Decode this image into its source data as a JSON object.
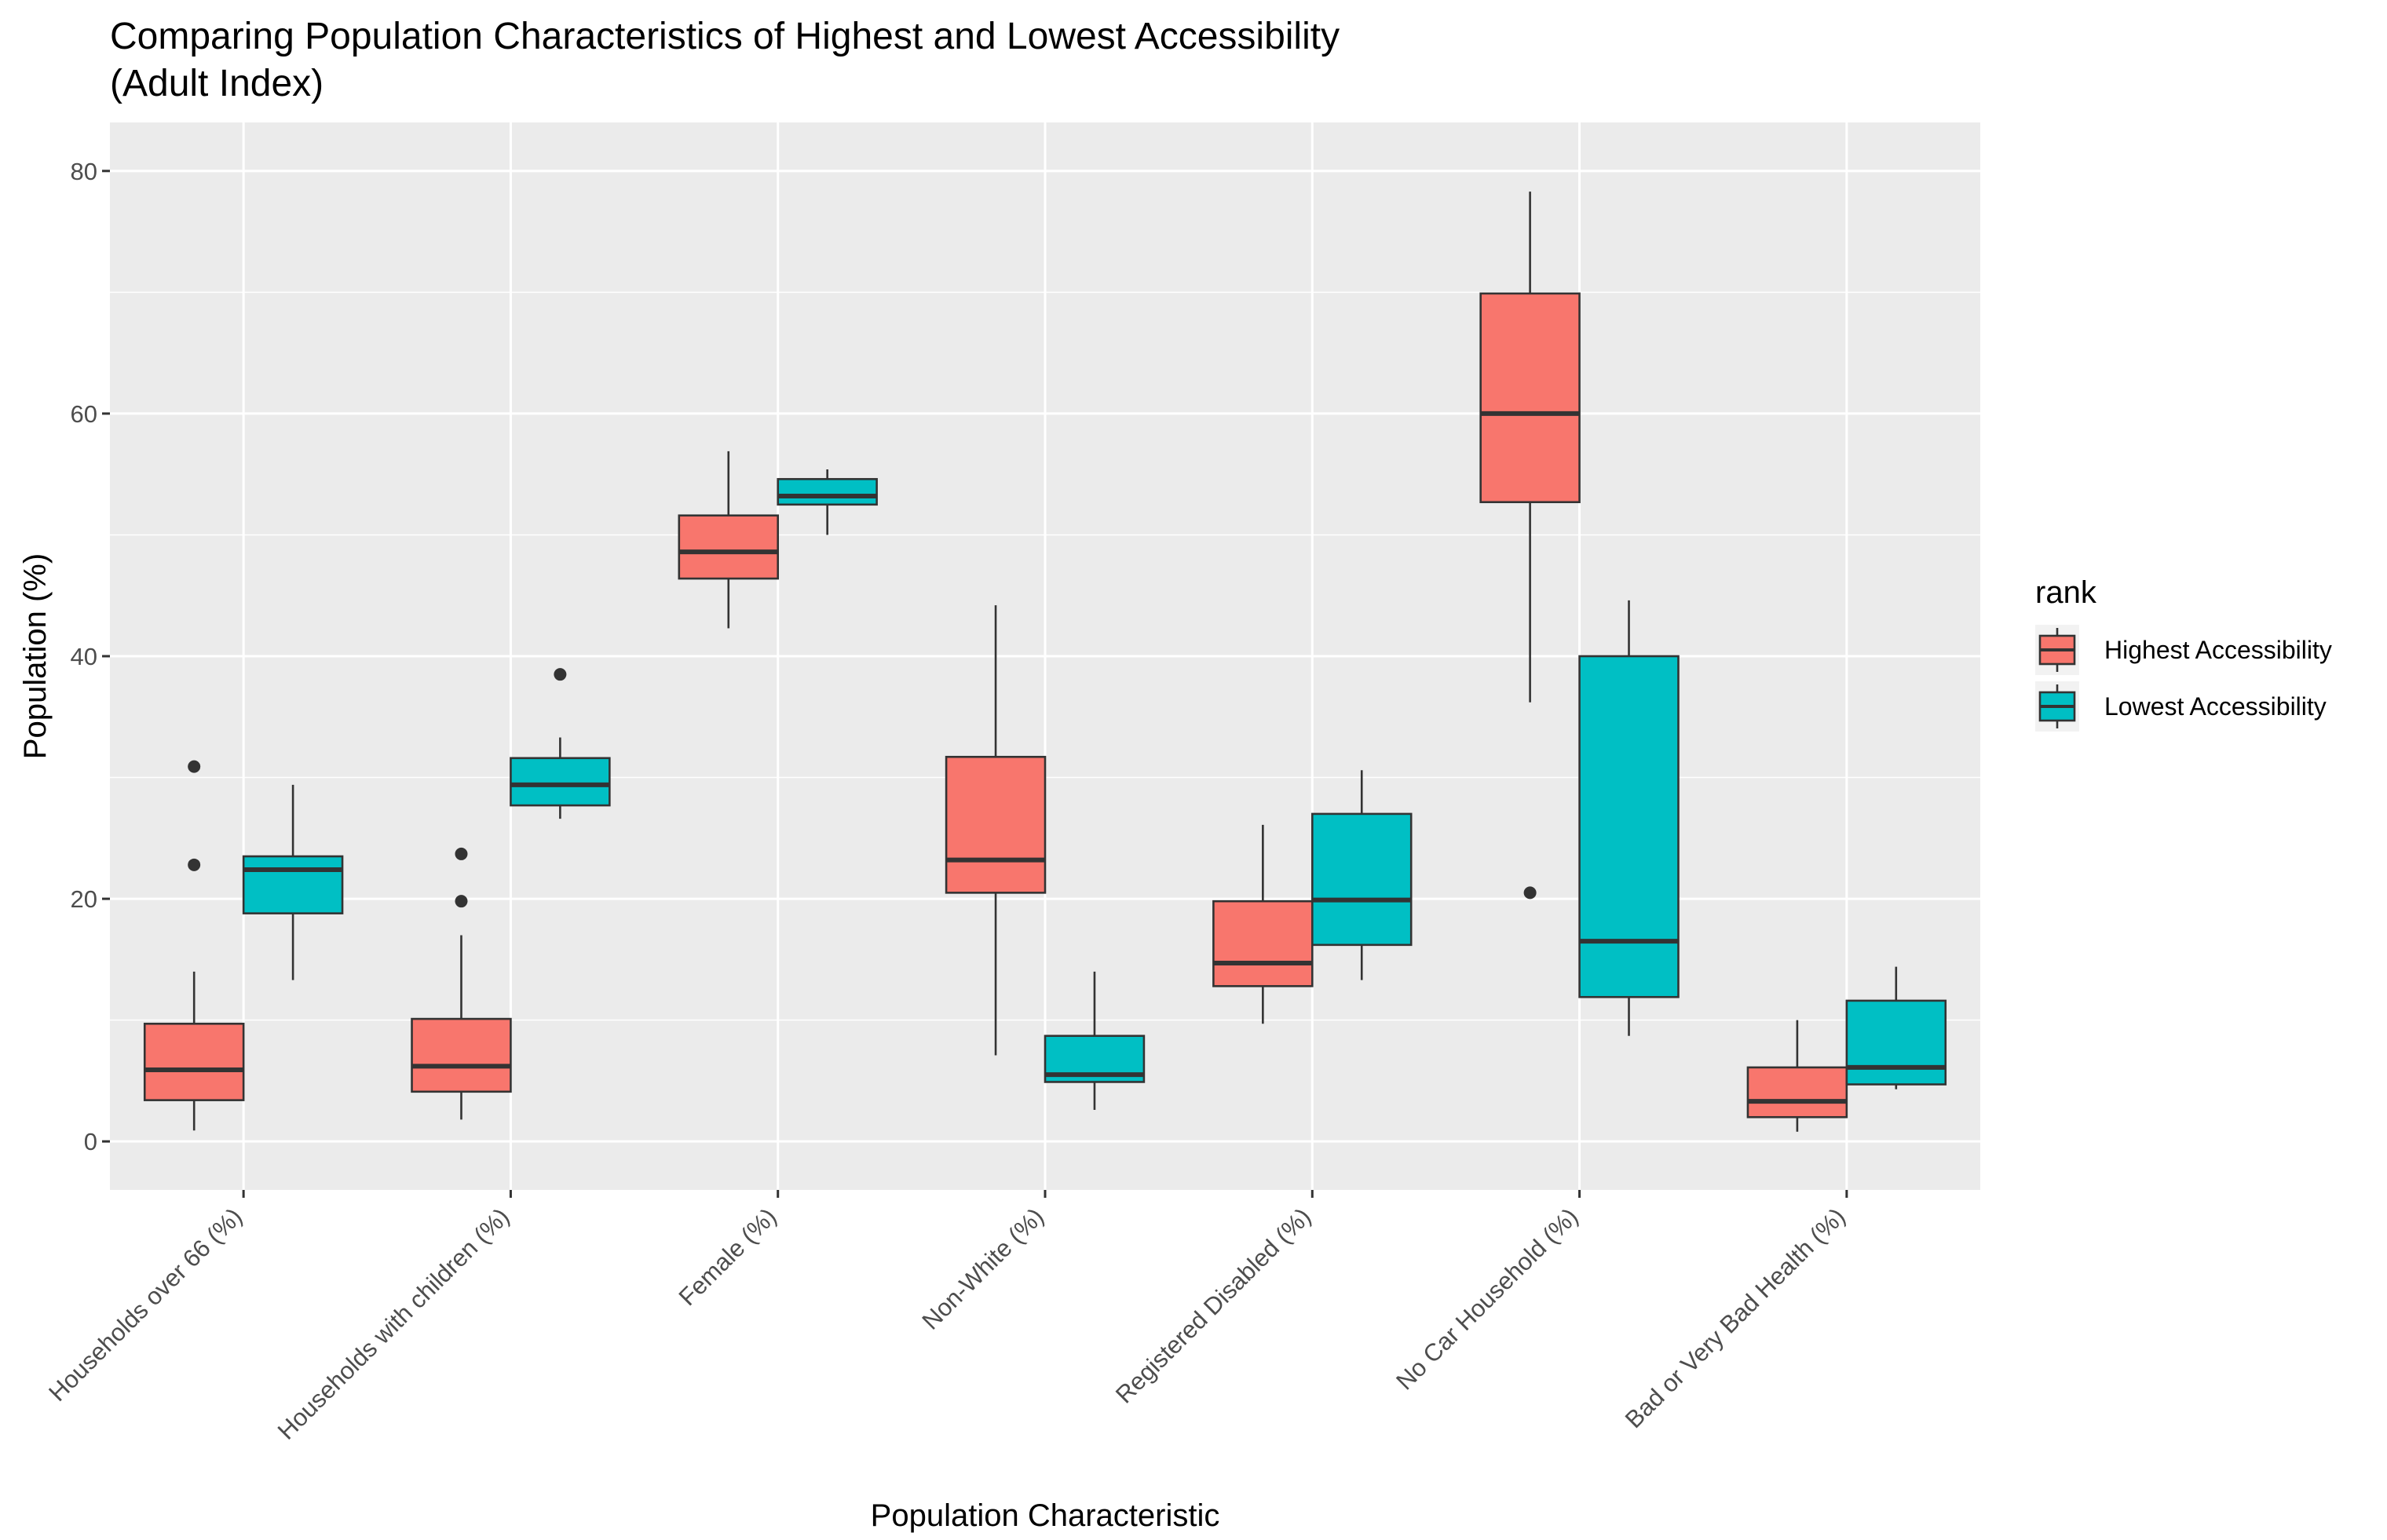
{
  "chart_data": {
    "type": "boxplot",
    "title": [
      "Comparing Population Characteristics of Highest and Lowest Accessibility",
      "(Adult Index)"
    ],
    "xlabel": "Population Characteristic",
    "ylabel": "Population (%)",
    "ylim": [
      -4,
      84
    ],
    "yticks": [
      0,
      20,
      40,
      60,
      80
    ],
    "grid": true,
    "legend": {
      "title": "rank",
      "position": "right"
    },
    "categories": [
      "Households over 66 (%)",
      "Households with children (%)",
      "Female (%)",
      "Non-White (%)",
      "Registered Disabled (%)",
      "No Car Household (%)",
      "Bad or Very Bad Health (%)"
    ],
    "series": [
      {
        "name": "Highest Accessibility",
        "color": "#F8766D",
        "boxes": [
          {
            "whisker_low": 0.9,
            "q1": 3.4,
            "median": 5.9,
            "q3": 9.7,
            "whisker_high": 14.0,
            "outliers": [
              22.8,
              30.9
            ]
          },
          {
            "whisker_low": 1.8,
            "q1": 4.1,
            "median": 6.2,
            "q3": 10.1,
            "whisker_high": 17.0,
            "outliers": [
              19.8,
              23.7
            ]
          },
          {
            "whisker_low": 42.3,
            "q1": 46.4,
            "median": 48.6,
            "q3": 51.6,
            "whisker_high": 56.9,
            "outliers": []
          },
          {
            "whisker_low": 7.1,
            "q1": 20.5,
            "median": 23.2,
            "q3": 31.7,
            "whisker_high": 44.2,
            "outliers": []
          },
          {
            "whisker_low": 9.7,
            "q1": 12.8,
            "median": 14.7,
            "q3": 19.8,
            "whisker_high": 26.1,
            "outliers": []
          },
          {
            "whisker_low": 36.2,
            "q1": 52.7,
            "median": 60.0,
            "q3": 69.9,
            "whisker_high": 78.3,
            "outliers": [
              20.5
            ]
          },
          {
            "whisker_low": 0.8,
            "q1": 2.0,
            "median": 3.3,
            "q3": 6.1,
            "whisker_high": 10.0,
            "outliers": []
          }
        ]
      },
      {
        "name": "Lowest Accessibility",
        "color": "#00BFC4",
        "boxes": [
          {
            "whisker_low": 13.3,
            "q1": 18.8,
            "median": 22.4,
            "q3": 23.5,
            "whisker_high": 29.4,
            "outliers": []
          },
          {
            "whisker_low": 26.6,
            "q1": 27.7,
            "median": 29.4,
            "q3": 31.6,
            "whisker_high": 33.3,
            "outliers": [
              38.5
            ]
          },
          {
            "whisker_low": 50.0,
            "q1": 52.5,
            "median": 53.2,
            "q3": 54.6,
            "whisker_high": 55.4,
            "outliers": []
          },
          {
            "whisker_low": 2.6,
            "q1": 4.9,
            "median": 5.5,
            "q3": 8.7,
            "whisker_high": 14.0,
            "outliers": []
          },
          {
            "whisker_low": 13.3,
            "q1": 16.2,
            "median": 19.9,
            "q3": 27.0,
            "whisker_high": 30.6,
            "outliers": []
          },
          {
            "whisker_low": 8.7,
            "q1": 11.9,
            "median": 16.5,
            "q3": 40.0,
            "whisker_high": 44.6,
            "outliers": []
          },
          {
            "whisker_low": 4.3,
            "q1": 4.7,
            "median": 6.1,
            "q3": 11.6,
            "whisker_high": 14.4,
            "outliers": []
          }
        ]
      }
    ]
  }
}
